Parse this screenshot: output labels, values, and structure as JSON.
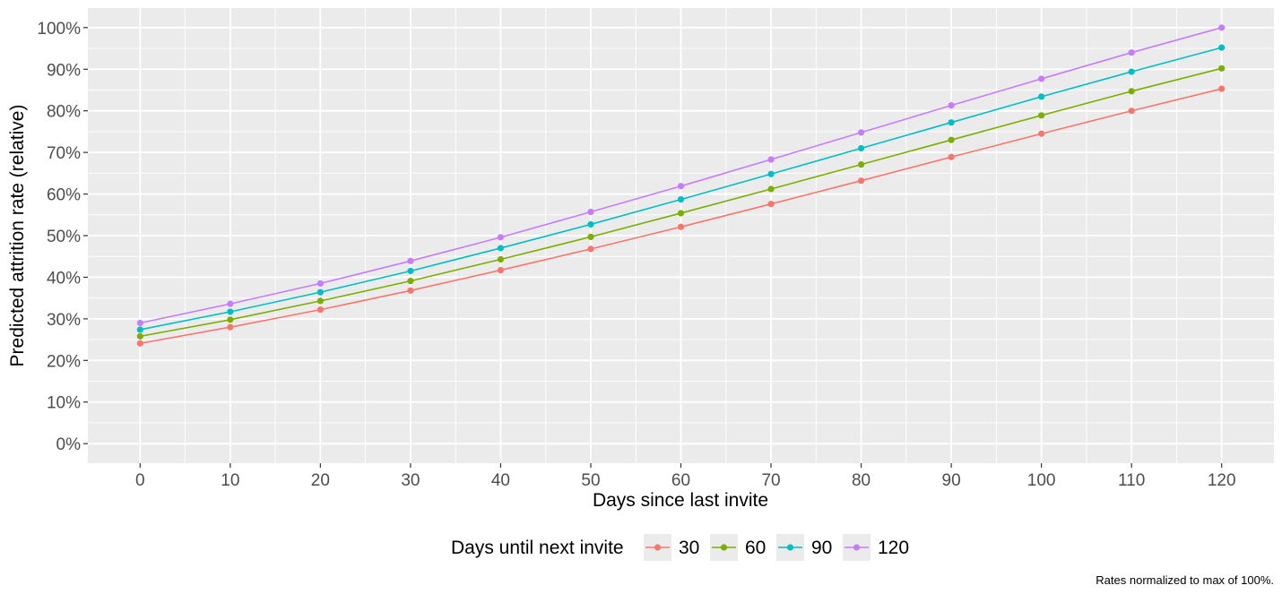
{
  "chart_data": {
    "type": "line",
    "xlabel": "Days since last invite",
    "ylabel": "Predicted attrition rate (relative)",
    "caption": "Rates normalized to max of 100%.",
    "x": [
      0,
      10,
      20,
      30,
      40,
      50,
      60,
      70,
      80,
      90,
      100,
      110,
      120
    ],
    "xlim": [
      -5.8,
      125.8
    ],
    "ylim": [
      -0.047,
      1.047
    ],
    "x_ticks": [
      0,
      10,
      20,
      30,
      40,
      50,
      60,
      70,
      80,
      90,
      100,
      110,
      120
    ],
    "x_tick_labels": [
      "0",
      "10",
      "20",
      "30",
      "40",
      "50",
      "60",
      "70",
      "80",
      "90",
      "100",
      "110",
      "120"
    ],
    "y_ticks": [
      0,
      0.1,
      0.2,
      0.3,
      0.4,
      0.5,
      0.6,
      0.7,
      0.8,
      0.9,
      1.0
    ],
    "y_tick_labels": [
      "0%",
      "10%",
      "20%",
      "30%",
      "40%",
      "50%",
      "60%",
      "70%",
      "80%",
      "90%",
      "100%"
    ],
    "grid": true,
    "legend": {
      "title": "Days until next invite",
      "position": "bottom"
    },
    "series": [
      {
        "name": "30",
        "color": "#F8766D",
        "values": [
          0.241,
          0.28,
          0.322,
          0.368,
          0.417,
          0.468,
          0.521,
          0.576,
          0.632,
          0.689,
          0.745,
          0.8,
          0.853
        ]
      },
      {
        "name": "60",
        "color": "#7CAE00",
        "values": [
          0.258,
          0.298,
          0.343,
          0.391,
          0.443,
          0.497,
          0.554,
          0.612,
          0.671,
          0.73,
          0.789,
          0.847,
          0.902
        ]
      },
      {
        "name": "90",
        "color": "#00BFC4",
        "values": [
          0.274,
          0.317,
          0.364,
          0.415,
          0.47,
          0.527,
          0.587,
          0.648,
          0.71,
          0.772,
          0.834,
          0.894,
          0.952
        ]
      },
      {
        "name": "120",
        "color": "#C77CFF",
        "values": [
          0.29,
          0.336,
          0.385,
          0.439,
          0.496,
          0.557,
          0.619,
          0.683,
          0.748,
          0.813,
          0.877,
          0.94,
          1.0
        ]
      }
    ]
  }
}
